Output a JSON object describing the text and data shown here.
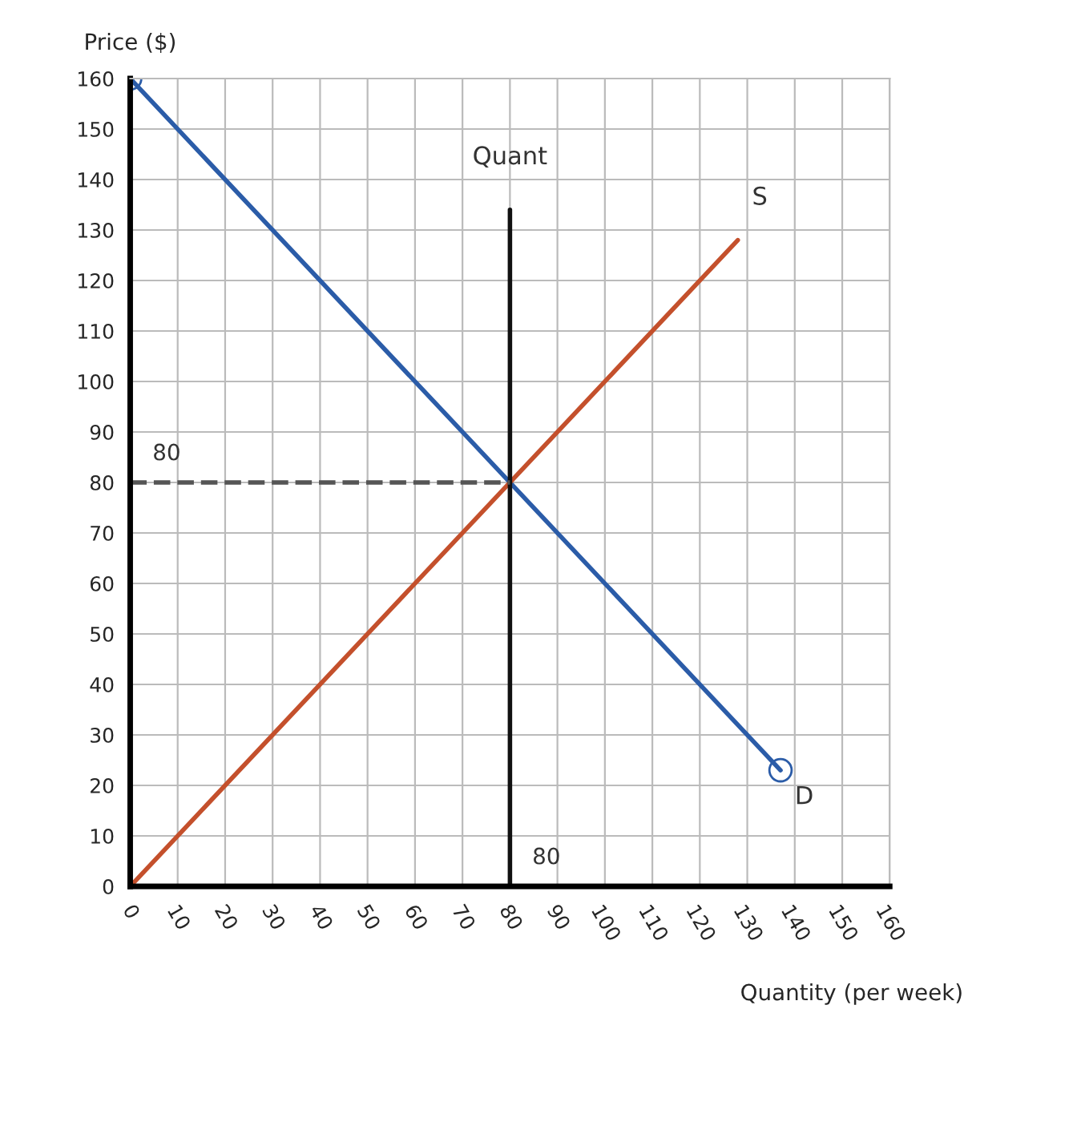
{
  "chart_data": {
    "type": "line",
    "xlabel": "Quantity (per week)",
    "ylabel": "Price ($)",
    "xlim": [
      0,
      160
    ],
    "ylim": [
      0,
      160
    ],
    "xticks": [
      0,
      10,
      20,
      30,
      40,
      50,
      60,
      70,
      80,
      90,
      100,
      110,
      120,
      130,
      140,
      150,
      160
    ],
    "yticks": [
      0,
      10,
      20,
      30,
      40,
      50,
      60,
      70,
      80,
      90,
      100,
      110,
      120,
      130,
      140,
      150,
      160
    ],
    "grid": true,
    "legend": false,
    "series": [
      {
        "name": "D",
        "color": "#2b5ca8",
        "x": [
          0,
          137
        ],
        "values": [
          160,
          23
        ],
        "marker": "circle"
      },
      {
        "name": "S",
        "color": "#c4502c",
        "x": [
          0,
          128
        ],
        "values": [
          0,
          128
        ],
        "marker": "none"
      },
      {
        "name": "Quant",
        "color": "#111111",
        "x": [
          80,
          80
        ],
        "values": [
          0,
          134
        ],
        "marker": "none"
      },
      {
        "color": "#555555",
        "x": [
          0,
          80
        ],
        "values": [
          80,
          80
        ],
        "marker": "none",
        "line_style": "dashed"
      }
    ],
    "annotations": [
      {
        "text": "80",
        "x": 0,
        "y": 80
      },
      {
        "text": "80",
        "x": 80,
        "y": 0
      }
    ]
  }
}
